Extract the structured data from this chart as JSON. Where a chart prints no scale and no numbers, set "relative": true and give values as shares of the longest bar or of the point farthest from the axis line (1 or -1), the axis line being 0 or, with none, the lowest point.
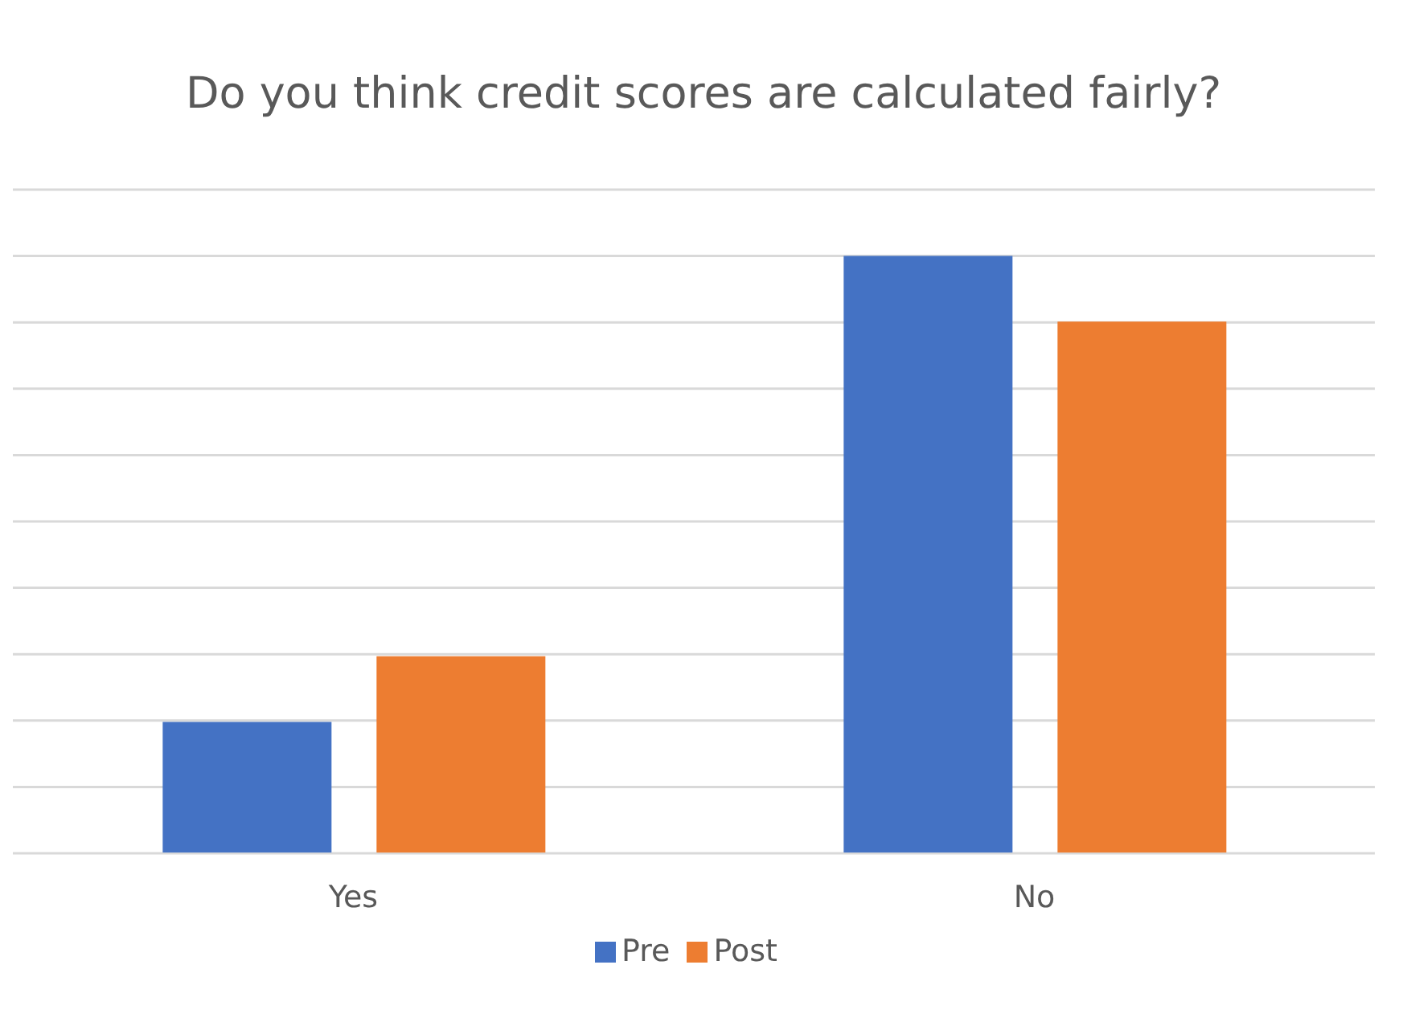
{
  "chart_data": {
    "type": "bar",
    "title": "Do you think credit scores are calculated fairly?",
    "categories": [
      "Yes",
      "No"
    ],
    "relative": true,
    "grid": "y",
    "legend": "bottom",
    "series": [
      {
        "name": "Pre",
        "color": "#4472c4",
        "values": [
          0.22,
          1
        ]
      },
      {
        "name": "Post",
        "color": "#ed7d31",
        "values": [
          0.33,
          0.89
        ]
      }
    ]
  }
}
